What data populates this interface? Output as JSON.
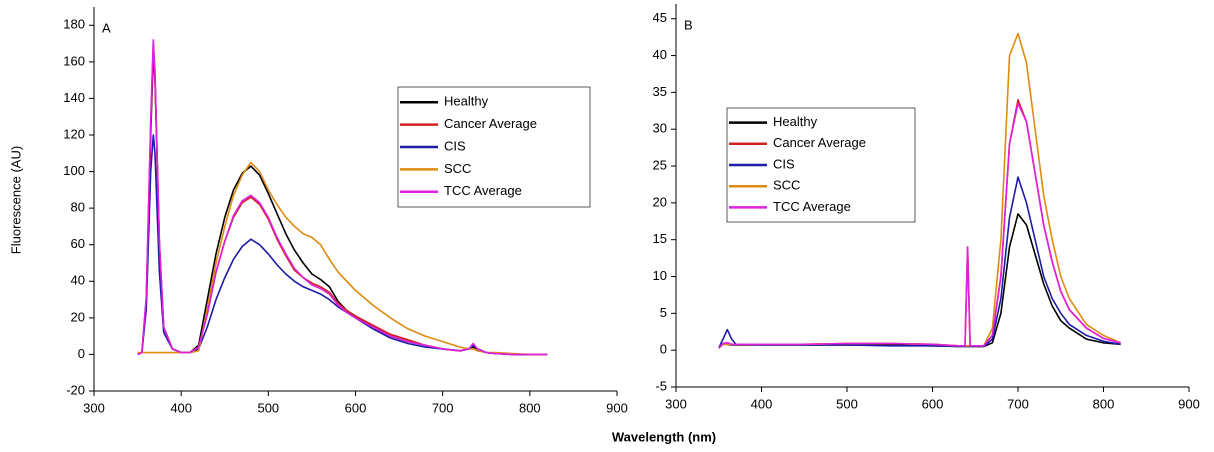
{
  "chart_data": [
    {
      "type": "line",
      "panel_label": "A",
      "ylabel": "Fluorescence (AU)",
      "xlabel": "Wavelength (nm)",
      "xlim": [
        300,
        900
      ],
      "xticks": [
        300,
        400,
        500,
        600,
        700,
        800,
        900
      ],
      "ylim": [
        -20,
        190
      ],
      "yticks": [
        -20,
        0,
        20,
        40,
        60,
        80,
        100,
        120,
        140,
        160,
        180
      ],
      "x": [
        350,
        355,
        360,
        365,
        368,
        370,
        375,
        380,
        390,
        400,
        410,
        420,
        430,
        440,
        450,
        460,
        470,
        480,
        490,
        500,
        510,
        520,
        530,
        540,
        550,
        560,
        570,
        580,
        590,
        600,
        620,
        640,
        660,
        680,
        700,
        720,
        730,
        735,
        740,
        750,
        760,
        780,
        800,
        820
      ],
      "series": [
        {
          "name": "Healthy",
          "color": "#000000",
          "values": [
            0,
            1,
            30,
            120,
            165,
            150,
            60,
            15,
            3,
            1,
            1,
            5,
            30,
            55,
            75,
            90,
            99,
            103,
            98,
            88,
            77,
            66,
            57,
            50,
            44,
            41,
            37,
            29,
            24,
            21,
            15,
            10,
            7,
            5,
            3,
            2,
            3,
            4,
            3,
            1,
            0.5,
            0,
            0,
            0
          ]
        },
        {
          "name": "Cancer Average",
          "color": "#d42020",
          "values": [
            0,
            1,
            30,
            125,
            170,
            152,
            60,
            15,
            3,
            1,
            1,
            4,
            22,
            45,
            62,
            75,
            83,
            86,
            82,
            74,
            63,
            54,
            46,
            42,
            39,
            37,
            34,
            28,
            24,
            21,
            16,
            11,
            8,
            5,
            3,
            2,
            3,
            5,
            3,
            1,
            0.5,
            0,
            0,
            0
          ]
        },
        {
          "name": "CIS",
          "color": "#1c1ca8",
          "values": [
            0,
            1,
            25,
            100,
            120,
            110,
            45,
            12,
            3,
            1,
            1,
            3,
            15,
            30,
            42,
            52,
            59,
            63,
            60,
            55,
            49,
            44,
            40,
            37,
            35,
            33,
            30,
            26,
            23,
            20,
            14,
            9,
            6,
            4,
            3,
            2,
            3,
            5,
            3,
            1,
            0.5,
            0,
            0,
            0
          ]
        },
        {
          "name": "SCC",
          "color": "#e08a10",
          "values": [
            1,
            1,
            1,
            1,
            1,
            1,
            1,
            1,
            1,
            1,
            1,
            2,
            25,
            50,
            70,
            87,
            98,
            105,
            100,
            90,
            82,
            75,
            70,
            66,
            64,
            60,
            52,
            45,
            40,
            35,
            27,
            20,
            14,
            10,
            7,
            4,
            3,
            3,
            2,
            1,
            1,
            0.5,
            0,
            0
          ]
        },
        {
          "name": "TCC Average",
          "color": "#e020e0",
          "values": [
            0,
            1,
            32,
            128,
            172,
            155,
            62,
            15,
            3,
            1,
            1,
            4,
            22,
            45,
            62,
            76,
            84,
            87,
            83,
            75,
            64,
            55,
            47,
            42,
            38,
            36,
            33,
            27,
            23,
            20,
            15,
            10,
            7,
            5,
            3,
            2,
            3,
            6,
            3,
            1,
            0.5,
            0,
            0,
            0
          ]
        }
      ]
    },
    {
      "type": "line",
      "panel_label": "B",
      "xlim": [
        300,
        900
      ],
      "xticks": [
        300,
        400,
        500,
        600,
        700,
        800,
        900
      ],
      "ylim": [
        -5,
        47
      ],
      "yticks": [
        -5,
        0,
        5,
        10,
        15,
        20,
        25,
        30,
        35,
        40,
        45
      ],
      "x": [
        350,
        355,
        360,
        365,
        370,
        380,
        400,
        450,
        500,
        550,
        600,
        630,
        638,
        641,
        644,
        650,
        660,
        670,
        680,
        690,
        700,
        710,
        720,
        730,
        740,
        750,
        760,
        780,
        800,
        820
      ],
      "series": [
        {
          "name": "Healthy",
          "color": "#000000",
          "values": [
            0.3,
            0.8,
            0.8,
            0.7,
            0.7,
            0.7,
            0.7,
            0.7,
            0.7,
            0.7,
            0.6,
            0.5,
            0.5,
            0.5,
            0.5,
            0.5,
            0.5,
            1,
            5,
            14,
            18.5,
            17,
            13,
            9,
            6,
            4,
            3,
            1.5,
            1,
            0.8
          ]
        },
        {
          "name": "Cancer Average",
          "color": "#d42020",
          "values": [
            0.3,
            0.9,
            1,
            0.8,
            0.8,
            0.8,
            0.8,
            0.8,
            0.9,
            0.9,
            0.8,
            0.6,
            0.6,
            14,
            0.6,
            0.6,
            0.6,
            2,
            10,
            28,
            34,
            31,
            24,
            17,
            12,
            8,
            5.5,
            3,
            1.6,
            1
          ]
        },
        {
          "name": "CIS",
          "color": "#1c1ca8",
          "values": [
            0.3,
            1.5,
            2.8,
            1.5,
            0.8,
            0.8,
            0.7,
            0.7,
            0.7,
            0.6,
            0.6,
            0.5,
            0.5,
            0.5,
            0.5,
            0.5,
            0.5,
            1.5,
            7,
            18,
            23.5,
            20,
            15,
            10,
            7,
            5,
            3.5,
            2,
            1.2,
            0.8
          ]
        },
        {
          "name": "SCC",
          "color": "#e08a10",
          "values": [
            0.3,
            0.8,
            0.8,
            0.8,
            0.8,
            0.8,
            0.8,
            0.8,
            0.9,
            0.9,
            0.8,
            0.6,
            0.6,
            0.6,
            0.6,
            0.6,
            0.6,
            3,
            15,
            40,
            43,
            39,
            30,
            21,
            15,
            10,
            7,
            3.5,
            2,
            1
          ]
        },
        {
          "name": "TCC Average",
          "color": "#e020e0",
          "values": [
            0.3,
            0.9,
            1,
            0.8,
            0.8,
            0.8,
            0.8,
            0.8,
            0.9,
            0.9,
            0.8,
            0.6,
            0.6,
            14,
            0.6,
            0.6,
            0.6,
            2,
            10,
            28,
            33.5,
            31,
            24,
            17,
            12,
            8,
            5.5,
            3,
            1.6,
            1
          ]
        }
      ]
    }
  ]
}
